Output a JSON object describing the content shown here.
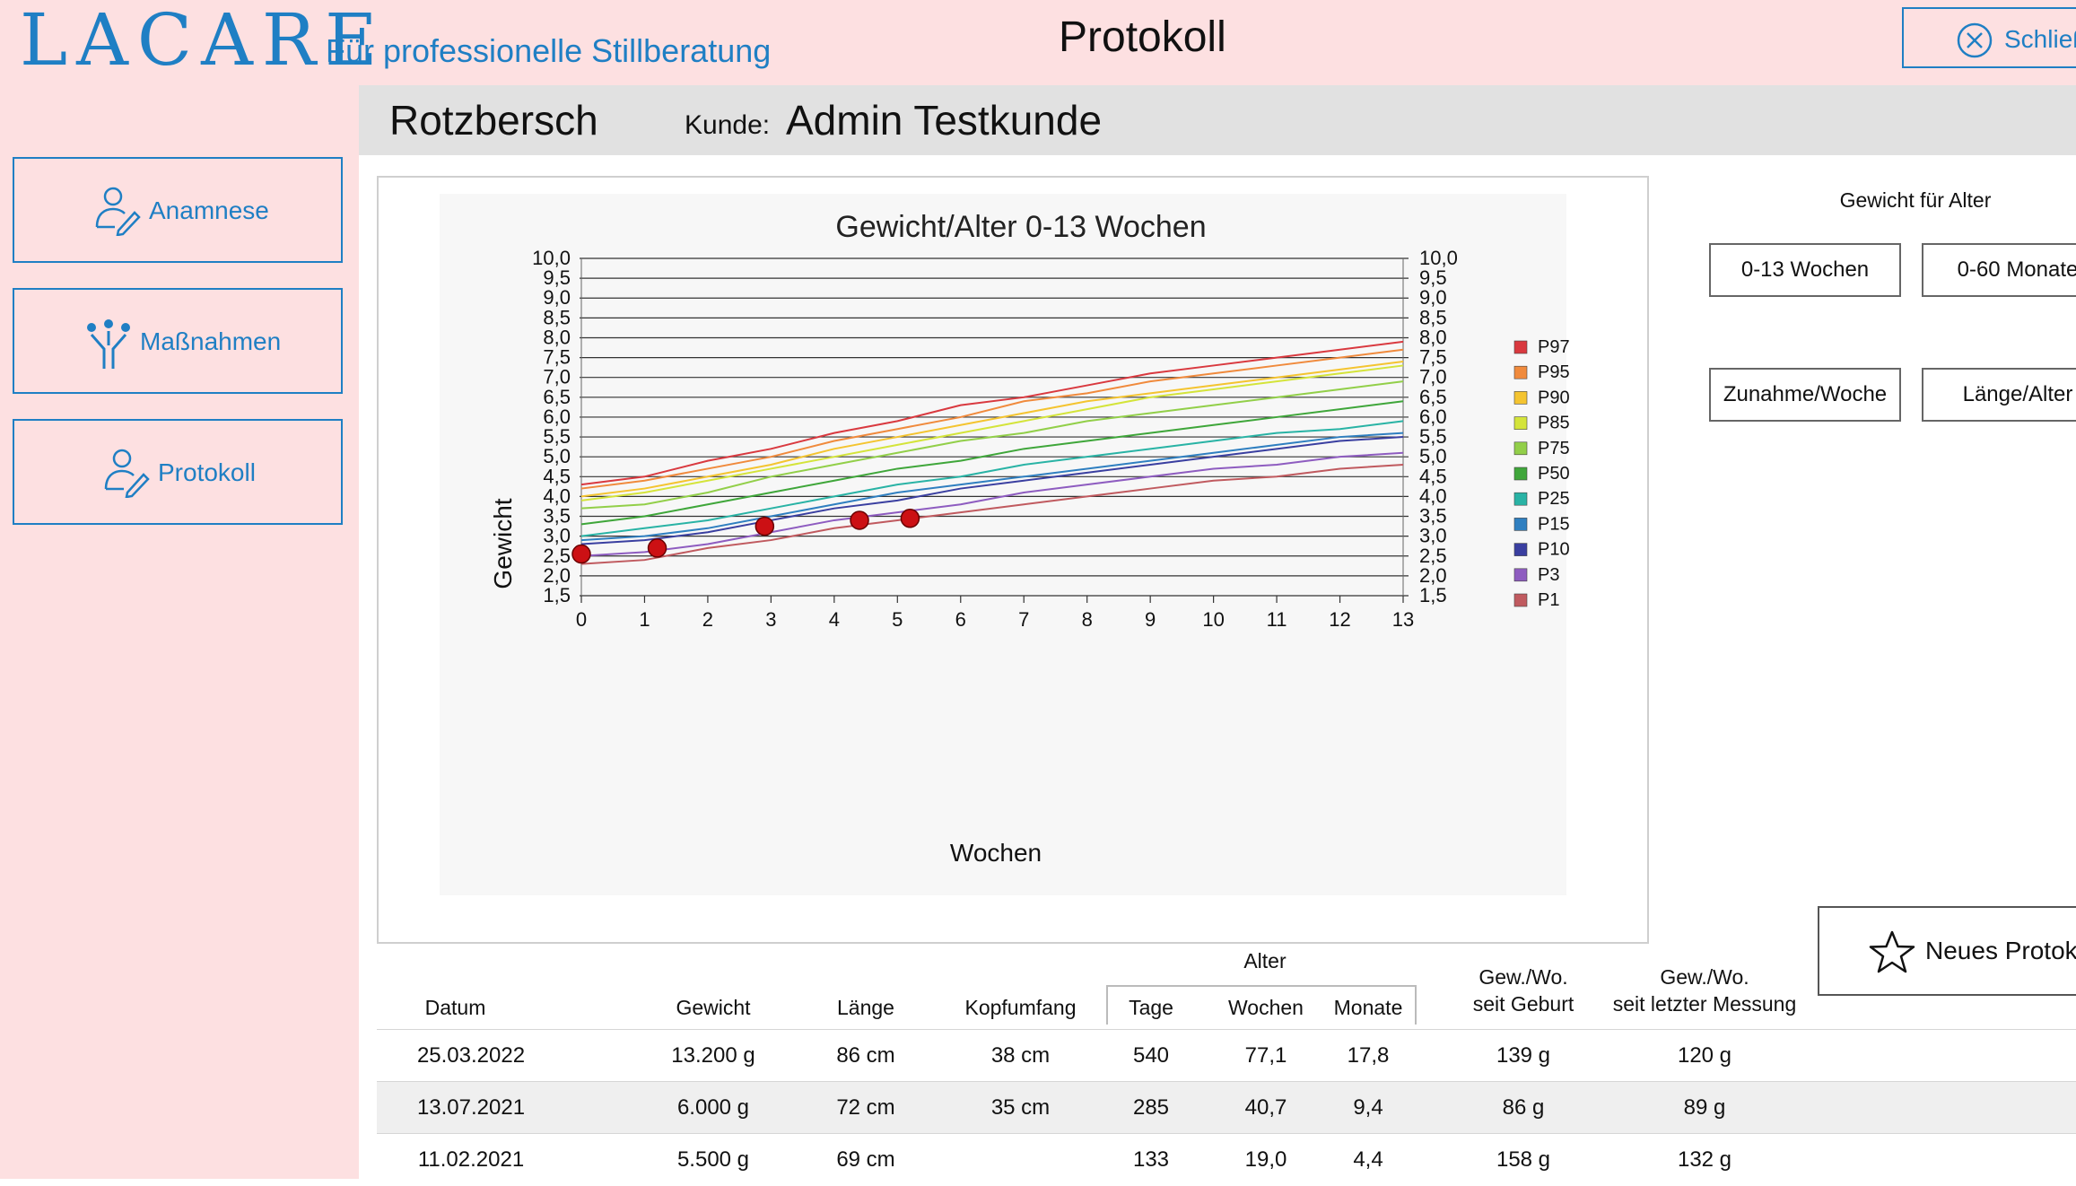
{
  "app": {
    "logo": "LACARE",
    "tagline": "Für professionelle Stillberatung",
    "page_title": "Protokoll",
    "close_label": "Schließen"
  },
  "sidebar": {
    "items": [
      {
        "label": "Anamnese",
        "icon": "person-pen-icon"
      },
      {
        "label": "Maßnahmen",
        "icon": "people-group-icon"
      },
      {
        "label": "Protokoll",
        "icon": "person-pen-icon"
      }
    ]
  },
  "header": {
    "patient": "Rotzbersch",
    "customer_label": "Kunde:",
    "customer_name": "Admin Testkunde"
  },
  "right_panel": {
    "title": "Gewicht für Alter",
    "buttons": [
      "0-13 Wochen",
      "0-60 Monate",
      "Zunahme/Woche",
      "Länge/Alter"
    ],
    "new_protocol": "Neues Protokoll"
  },
  "chart_data": {
    "type": "line",
    "title": "Gewicht/Alter 0-13 Wochen",
    "xlabel": "Wochen",
    "ylabel": "Gewicht",
    "xlim": [
      0,
      13
    ],
    "ylim": [
      1.5,
      10.0
    ],
    "x_ticks": [
      "0",
      "1",
      "2",
      "3",
      "4",
      "5",
      "6",
      "7",
      "8",
      "9",
      "10",
      "11",
      "12",
      "13"
    ],
    "y_ticks": [
      "10,0",
      "9,5",
      "9,0",
      "8,5",
      "8,0",
      "7,5",
      "7,0",
      "6,5",
      "6,0",
      "5,5",
      "5,0",
      "4,5",
      "4,0",
      "3,5",
      "3,0",
      "2,5",
      "2,0",
      "1,5"
    ],
    "grid": true,
    "legend_position": "right",
    "x": [
      0,
      1,
      2,
      3,
      4,
      5,
      6,
      7,
      8,
      9,
      10,
      11,
      12,
      13
    ],
    "series": [
      {
        "name": "P97",
        "color": "#d9393f",
        "values": [
          4.3,
          4.5,
          4.9,
          5.2,
          5.6,
          5.9,
          6.3,
          6.5,
          6.8,
          7.1,
          7.3,
          7.5,
          7.7,
          7.9
        ]
      },
      {
        "name": "P95",
        "color": "#f08a3c",
        "values": [
          4.2,
          4.4,
          4.7,
          5.0,
          5.4,
          5.7,
          6.0,
          6.4,
          6.6,
          6.9,
          7.1,
          7.3,
          7.5,
          7.7
        ]
      },
      {
        "name": "P90",
        "color": "#f4c430",
        "values": [
          4.0,
          4.2,
          4.5,
          4.8,
          5.2,
          5.5,
          5.8,
          6.1,
          6.4,
          6.6,
          6.8,
          7.0,
          7.2,
          7.4
        ]
      },
      {
        "name": "P85",
        "color": "#d4e43a",
        "values": [
          3.9,
          4.1,
          4.4,
          4.7,
          5.0,
          5.3,
          5.6,
          5.9,
          6.2,
          6.5,
          6.7,
          6.9,
          7.1,
          7.3
        ]
      },
      {
        "name": "P75",
        "color": "#92cf49",
        "values": [
          3.7,
          3.8,
          4.1,
          4.5,
          4.8,
          5.1,
          5.4,
          5.6,
          5.9,
          6.1,
          6.3,
          6.5,
          6.7,
          6.9
        ]
      },
      {
        "name": "P50",
        "color": "#3fa63a",
        "values": [
          3.3,
          3.5,
          3.8,
          4.1,
          4.4,
          4.7,
          4.9,
          5.2,
          5.4,
          5.6,
          5.8,
          6.0,
          6.2,
          6.4
        ]
      },
      {
        "name": "P25",
        "color": "#29b3a5",
        "values": [
          3.0,
          3.2,
          3.4,
          3.7,
          4.0,
          4.3,
          4.5,
          4.8,
          5.0,
          5.2,
          5.4,
          5.6,
          5.7,
          5.9
        ]
      },
      {
        "name": "P15",
        "color": "#2f7fc0",
        "values": [
          2.9,
          3.0,
          3.2,
          3.5,
          3.8,
          4.1,
          4.3,
          4.5,
          4.7,
          4.9,
          5.1,
          5.3,
          5.5,
          5.6
        ]
      },
      {
        "name": "P10",
        "color": "#3a3fa0",
        "values": [
          2.8,
          2.9,
          3.1,
          3.4,
          3.7,
          3.9,
          4.2,
          4.4,
          4.6,
          4.8,
          5.0,
          5.2,
          5.4,
          5.5
        ]
      },
      {
        "name": "P3",
        "color": "#8e5cc0",
        "values": [
          2.5,
          2.6,
          2.8,
          3.1,
          3.4,
          3.6,
          3.8,
          4.1,
          4.3,
          4.5,
          4.7,
          4.8,
          5.0,
          5.1
        ]
      },
      {
        "name": "P1",
        "color": "#c05a5f",
        "values": [
          2.3,
          2.4,
          2.7,
          2.9,
          3.2,
          3.4,
          3.6,
          3.8,
          4.0,
          4.2,
          4.4,
          4.5,
          4.7,
          4.8
        ]
      }
    ],
    "measurements": {
      "color": "#cc1014",
      "points": [
        {
          "x": 0.0,
          "y": 2.55
        },
        {
          "x": 1.2,
          "y": 2.7
        },
        {
          "x": 2.9,
          "y": 3.25
        },
        {
          "x": 4.4,
          "y": 3.4
        },
        {
          "x": 5.2,
          "y": 3.45
        }
      ]
    }
  },
  "table": {
    "group_header": "Alter",
    "headers": {
      "datum": "Datum",
      "gewicht": "Gewicht",
      "laenge": "Länge",
      "kopfumfang": "Kopfumfang",
      "tage": "Tage",
      "wochen": "Wochen",
      "monate": "Monate",
      "gew_geburt_1": "Gew./Wo.",
      "gew_geburt_2": "seit Geburt",
      "gew_letzte_1": "Gew./Wo.",
      "gew_letzte_2": "seit letzter Messung"
    },
    "rows": [
      {
        "datum": "25.03.2022",
        "gewicht": "13.200 g",
        "laenge": "86 cm",
        "kopfumfang": "38 cm",
        "tage": "540",
        "wochen": "77,1",
        "monate": "17,8",
        "seit_geburt": "139 g",
        "seit_letzter": "120 g"
      },
      {
        "datum": "13.07.2021",
        "gewicht": "6.000 g",
        "laenge": "72 cm",
        "kopfumfang": "35 cm",
        "tage": "285",
        "wochen": "40,7",
        "monate": "9,4",
        "seit_geburt": "86 g",
        "seit_letzter": "89 g"
      },
      {
        "datum": "11.02.2021",
        "gewicht": "5.500 g",
        "laenge": "69 cm",
        "kopfumfang": "",
        "tage": "133",
        "wochen": "19,0",
        "monate": "4,4",
        "seit_geburt": "158 g",
        "seit_letzter": "132 g"
      }
    ]
  }
}
